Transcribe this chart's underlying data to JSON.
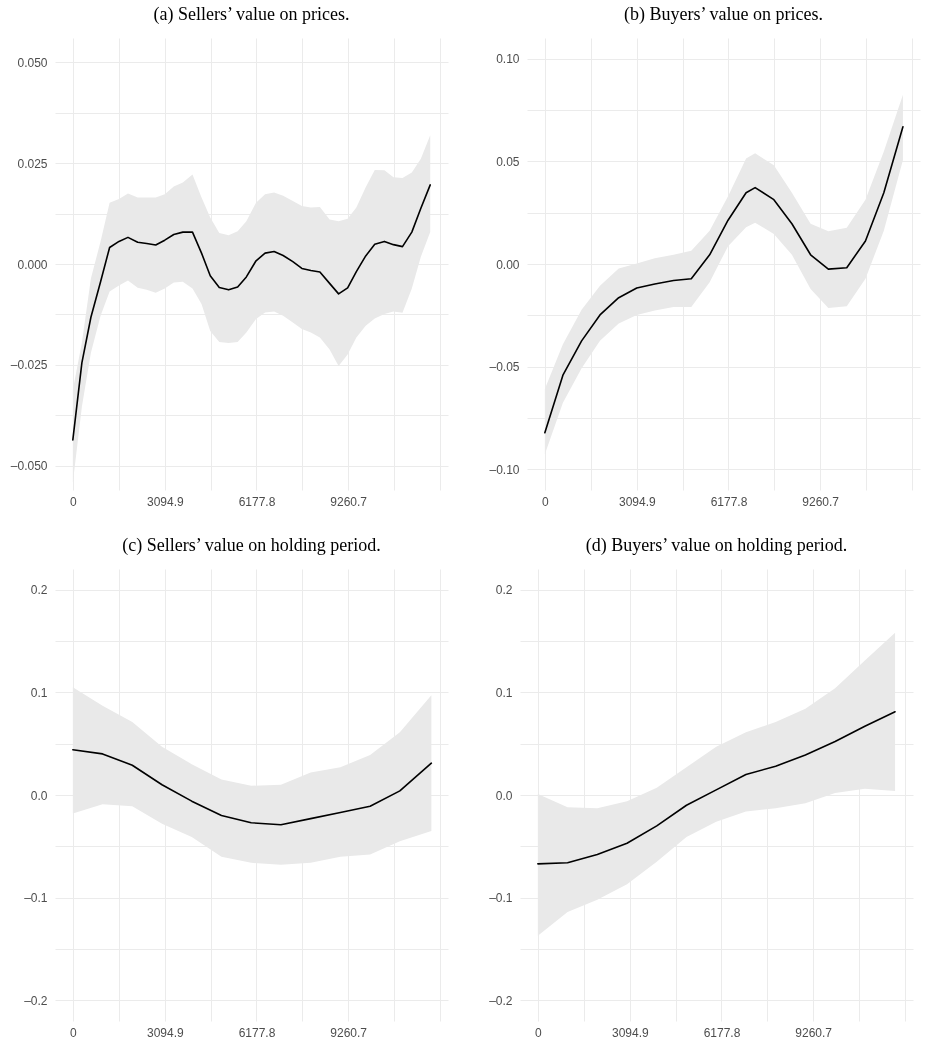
{
  "chart_data": [
    {
      "type": "line",
      "title": "(a) Sellers’ value on prices.",
      "grid": true,
      "xlim": [
        -600,
        12620
      ],
      "ylim": [
        -0.056,
        0.056
      ],
      "xticks": [
        0,
        {
          "value": 1547.5,
          "label": null
        },
        3094.9,
        {
          "value": 4636.4,
          "label": null
        },
        6177.8,
        {
          "value": 7719.3,
          "label": null
        },
        9260.7,
        {
          "value": 10802.2,
          "label": null
        },
        {
          "value": 12343.6,
          "label": null
        }
      ],
      "yticks": [
        {
          "value": -0.05,
          "label": "–0.050"
        },
        {
          "value": -0.0375,
          "label": null
        },
        {
          "value": -0.025,
          "label": "–0.025"
        },
        {
          "value": -0.0125,
          "label": null
        },
        {
          "value": 0,
          "label": "0.000"
        },
        {
          "value": 0.0125,
          "label": null
        },
        {
          "value": 0.025,
          "label": "0.025"
        },
        {
          "value": 0.0375,
          "label": null
        },
        {
          "value": 0.05,
          "label": "0.050"
        }
      ],
      "x": [
        0,
        304,
        608,
        933,
        1237,
        1552,
        1855,
        2181,
        2485,
        2788,
        3092,
        3396,
        3700,
        4025,
        4329,
        4622,
        4926,
        5241,
        5544,
        5837,
        6163,
        6467,
        6770,
        7074,
        7400,
        7704,
        8007,
        8311,
        8637,
        8940,
        9244,
        9537,
        9852,
        10156,
        10481,
        10785,
        11089,
        11403,
        11707,
        12022
      ],
      "series": [
        {
          "color": "#000000",
          "values": [
            -0.0436,
            -0.0245,
            -0.0132,
            -0.0044,
            0.0041,
            0.0056,
            0.0066,
            0.0054,
            0.0051,
            0.0047,
            0.0059,
            0.0073,
            0.0079,
            0.0079,
            0.0027,
            -0.0029,
            -0.0058,
            -0.0064,
            -0.0057,
            -0.0032,
            0.0008,
            0.0027,
            0.0031,
            0.0021,
            0.0006,
            -0.0011,
            -0.0016,
            -0.002,
            -0.0048,
            -0.0074,
            -0.0059,
            -0.0019,
            0.002,
            0.0049,
            0.0056,
            0.0048,
            0.0043,
            0.0079,
            0.0138,
            0.0196
          ],
          "upper": [
            -0.0312,
            -0.0195,
            -0.0036,
            0.0056,
            0.0152,
            0.0161,
            0.0175,
            0.0165,
            0.0165,
            0.0165,
            0.0173,
            0.0192,
            0.0202,
            0.0222,
            0.0165,
            0.0115,
            0.0077,
            0.0071,
            0.0081,
            0.0106,
            0.0152,
            0.0173,
            0.0177,
            0.0169,
            0.0156,
            0.0144,
            0.014,
            0.0141,
            0.011,
            0.0106,
            0.0112,
            0.014,
            0.019,
            0.0233,
            0.0232,
            0.0215,
            0.0213,
            0.0227,
            0.0261,
            0.0319
          ],
          "lower": [
            -0.0542,
            -0.0354,
            -0.022,
            -0.0128,
            -0.0068,
            -0.0053,
            -0.0041,
            -0.0059,
            -0.0064,
            -0.0071,
            -0.0061,
            -0.0046,
            -0.0044,
            -0.0061,
            -0.0099,
            -0.0166,
            -0.0193,
            -0.0196,
            -0.0193,
            -0.017,
            -0.0136,
            -0.012,
            -0.0118,
            -0.0128,
            -0.0145,
            -0.0161,
            -0.017,
            -0.0182,
            -0.0212,
            -0.0253,
            -0.0224,
            -0.0182,
            -0.0153,
            -0.0135,
            -0.0124,
            -0.0118,
            -0.0121,
            -0.0061,
            0.0018,
            0.0079
          ]
        }
      ]
    },
    {
      "type": "line",
      "title": "(b) Buyers’ value on prices.",
      "grid": true,
      "xlim": [
        -600,
        12620
      ],
      "ylim": [
        -0.11,
        0.11
      ],
      "xticks": [
        0,
        {
          "value": 1547.5,
          "label": null
        },
        3094.9,
        {
          "value": 4636.4,
          "label": null
        },
        6177.8,
        {
          "value": 7719.3,
          "label": null
        },
        9260.7,
        {
          "value": 10802.2,
          "label": null
        },
        {
          "value": 12343.6,
          "label": null
        }
      ],
      "yticks": [
        {
          "value": -0.1,
          "label": "–0.10"
        },
        {
          "value": -0.075,
          "label": null
        },
        {
          "value": -0.05,
          "label": "–0.05"
        },
        {
          "value": -0.025,
          "label": null
        },
        {
          "value": 0,
          "label": "0.00"
        },
        {
          "value": 0.025,
          "label": null
        },
        {
          "value": 0.05,
          "label": "0.05"
        },
        {
          "value": 0.075,
          "label": null
        },
        {
          "value": 0.1,
          "label": "0.10"
        }
      ],
      "x": [
        0,
        608,
        1237,
        1855,
        2485,
        3092,
        3700,
        4329,
        4926,
        5544,
        6163,
        6770,
        7074,
        7704,
        8311,
        8940,
        9537,
        10156,
        10785,
        11403,
        12046
      ],
      "series": [
        {
          "color": "#000000",
          "values": [
            -0.0821,
            -0.0541,
            -0.0374,
            -0.0248,
            -0.0164,
            -0.0117,
            -0.0097,
            -0.008,
            -0.0072,
            0.0045,
            0.0213,
            0.0347,
            0.0372,
            0.0313,
            0.0196,
            0.0045,
            -0.0025,
            -0.0018,
            0.0112,
            0.0347,
            0.0668
          ],
          "upper": [
            -0.0608,
            -0.039,
            -0.0223,
            -0.0106,
            -0.0022,
            0.0003,
            0.0028,
            0.0045,
            0.0065,
            0.0162,
            0.033,
            0.0514,
            0.0539,
            0.0481,
            0.0347,
            0.0196,
            0.0159,
            0.0176,
            0.0313,
            0.0548,
            0.0824
          ],
          "lower": [
            -0.0926,
            -0.0675,
            -0.0508,
            -0.0374,
            -0.029,
            -0.0248,
            -0.0226,
            -0.0209,
            -0.0209,
            -0.0089,
            0.0087,
            0.0179,
            0.0201,
            0.0146,
            0.0045,
            -0.0122,
            -0.0214,
            -0.0206,
            -0.0072,
            0.0162,
            0.0506
          ]
        }
      ]
    },
    {
      "type": "line",
      "title": "(c) Sellers’ value on holding period.",
      "grid": true,
      "xlim": [
        -600,
        12620
      ],
      "ylim": [
        -0.22,
        0.22
      ],
      "xticks": [
        0,
        {
          "value": 1547.5,
          "label": null
        },
        3094.9,
        {
          "value": 4636.4,
          "label": null
        },
        6177.8,
        {
          "value": 7719.3,
          "label": null
        },
        9260.7,
        {
          "value": 10802.2,
          "label": null
        },
        {
          "value": 12343.6,
          "label": null
        }
      ],
      "yticks": [
        {
          "value": -0.2,
          "label": "–0.2"
        },
        {
          "value": -0.15,
          "label": null
        },
        {
          "value": -0.1,
          "label": "–0.1"
        },
        {
          "value": -0.05,
          "label": null
        },
        {
          "value": 0,
          "label": "0.0"
        },
        {
          "value": 0.05,
          "label": null
        },
        {
          "value": 0.1,
          "label": "0.1"
        },
        {
          "value": 0.15,
          "label": null
        },
        {
          "value": 0.2,
          "label": "0.2"
        }
      ],
      "x": [
        0,
        1000,
        2000,
        3000,
        4000,
        5000,
        6000,
        7000,
        8000,
        9000,
        10000,
        11000,
        12060
      ],
      "series": [
        {
          "color": "#000000",
          "values": [
            0.044,
            0.04,
            0.029,
            0.01,
            -0.006,
            -0.02,
            -0.027,
            -0.029,
            -0.023,
            -0.017,
            -0.011,
            0.004,
            0.031
          ],
          "upper": [
            0.105,
            0.087,
            0.071,
            0.047,
            0.03,
            0.015,
            0.009,
            0.01,
            0.022,
            0.027,
            0.039,
            0.061,
            0.097
          ],
          "lower": [
            -0.018,
            -0.009,
            -0.011,
            -0.028,
            -0.041,
            -0.06,
            -0.066,
            -0.068,
            -0.066,
            -0.06,
            -0.058,
            -0.045,
            -0.035
          ]
        }
      ]
    },
    {
      "type": "line",
      "title": "(d) Buyers’ value on holding period.",
      "grid": true,
      "xlim": [
        -600,
        12620
      ],
      "ylim": [
        -0.22,
        0.22
      ],
      "xticks": [
        0,
        {
          "value": 1547.5,
          "label": null
        },
        3094.9,
        {
          "value": 4636.4,
          "label": null
        },
        6177.8,
        {
          "value": 7719.3,
          "label": null
        },
        9260.7,
        {
          "value": 10802.2,
          "label": null
        },
        {
          "value": 12343.6,
          "label": null
        }
      ],
      "yticks": [
        {
          "value": -0.2,
          "label": "–0.2"
        },
        {
          "value": -0.15,
          "label": null
        },
        {
          "value": -0.1,
          "label": "–0.1"
        },
        {
          "value": -0.05,
          "label": null
        },
        {
          "value": 0,
          "label": "0.0"
        },
        {
          "value": 0.05,
          "label": null
        },
        {
          "value": 0.1,
          "label": "0.1"
        },
        {
          "value": 0.15,
          "label": null
        },
        {
          "value": 0.2,
          "label": "0.2"
        }
      ],
      "x": [
        0,
        1000,
        2000,
        3000,
        4000,
        5000,
        6000,
        7000,
        8000,
        9000,
        10000,
        11000,
        12017
      ],
      "series": [
        {
          "color": "#000000",
          "values": [
            -0.067,
            -0.066,
            -0.058,
            -0.047,
            -0.03,
            -0.01,
            0.005,
            0.02,
            0.028,
            0.039,
            0.052,
            0.067,
            0.081
          ],
          "upper": [
            0.001,
            -0.012,
            -0.013,
            -0.006,
            0.007,
            0.027,
            0.047,
            0.061,
            0.071,
            0.084,
            0.104,
            0.131,
            0.158
          ],
          "lower": [
            -0.137,
            -0.114,
            -0.102,
            -0.087,
            -0.065,
            -0.041,
            -0.026,
            -0.016,
            -0.013,
            -0.008,
            0.002,
            0.006,
            0.004
          ]
        }
      ]
    }
  ]
}
